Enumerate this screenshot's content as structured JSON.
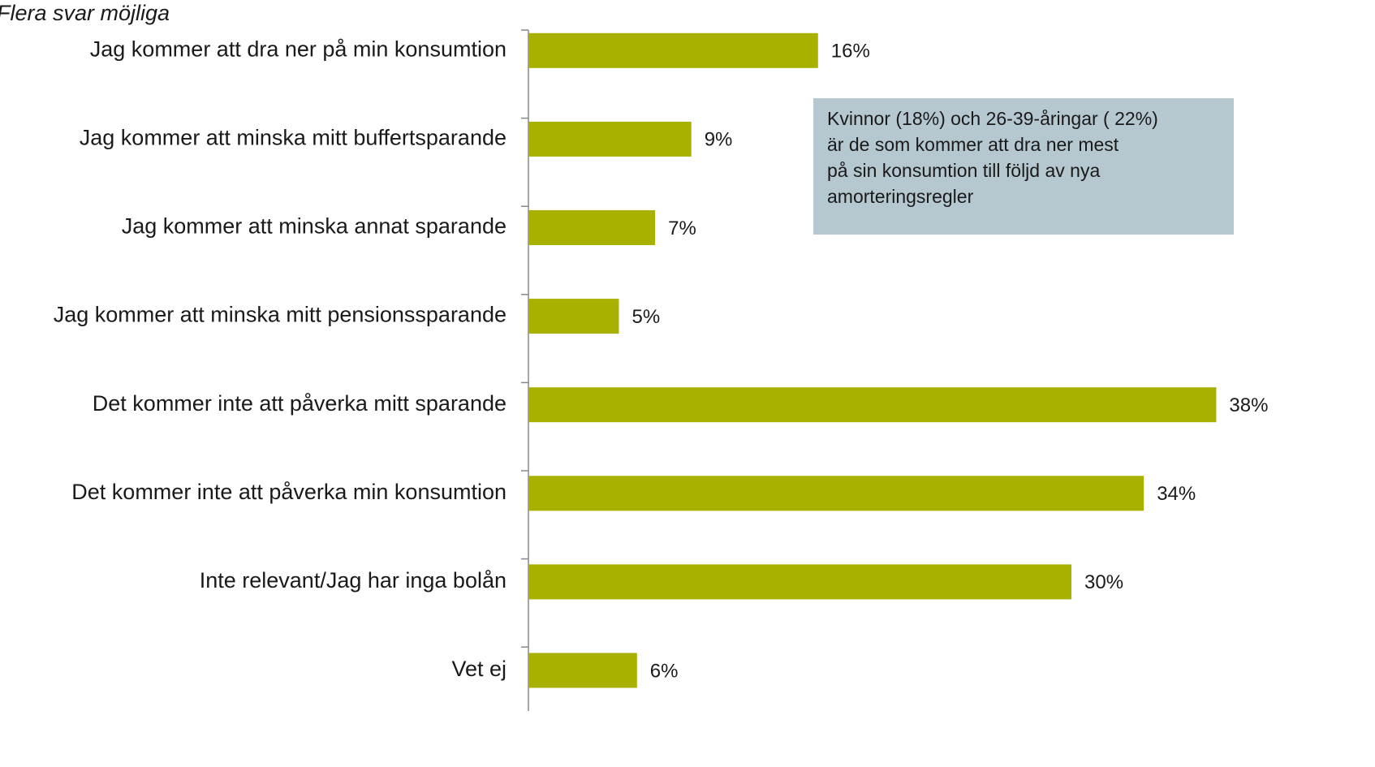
{
  "chart_data": {
    "type": "bar",
    "orientation": "horizontal",
    "subtitle": "Flera svar möjliga",
    "categories": [
      "Jag kommer att dra ner på min konsumtion",
      "Jag kommer att minska mitt buffertsparande",
      "Jag kommer att minska annat sparande",
      "Jag kommer att minska mitt pensionssparande",
      "Det kommer inte att påverka mitt sparande",
      "Det kommer inte att påverka min konsumtion",
      "Inte relevant/Jag har inga bolån",
      "Vet ej"
    ],
    "values": [
      16,
      9,
      7,
      5,
      38,
      34,
      30,
      6
    ],
    "value_labels": [
      "16%",
      "9%",
      "7%",
      "5%",
      "38%",
      "34%",
      "30%",
      "6%"
    ],
    "color": "#a8b000",
    "annotation": [
      "Kvinnor (18%) och 26-39-åringar ( 22%)",
      "är de som kommer att dra ner mest",
      "på sin konsumtion till följd av nya",
      "amorteringsregler"
    ]
  }
}
